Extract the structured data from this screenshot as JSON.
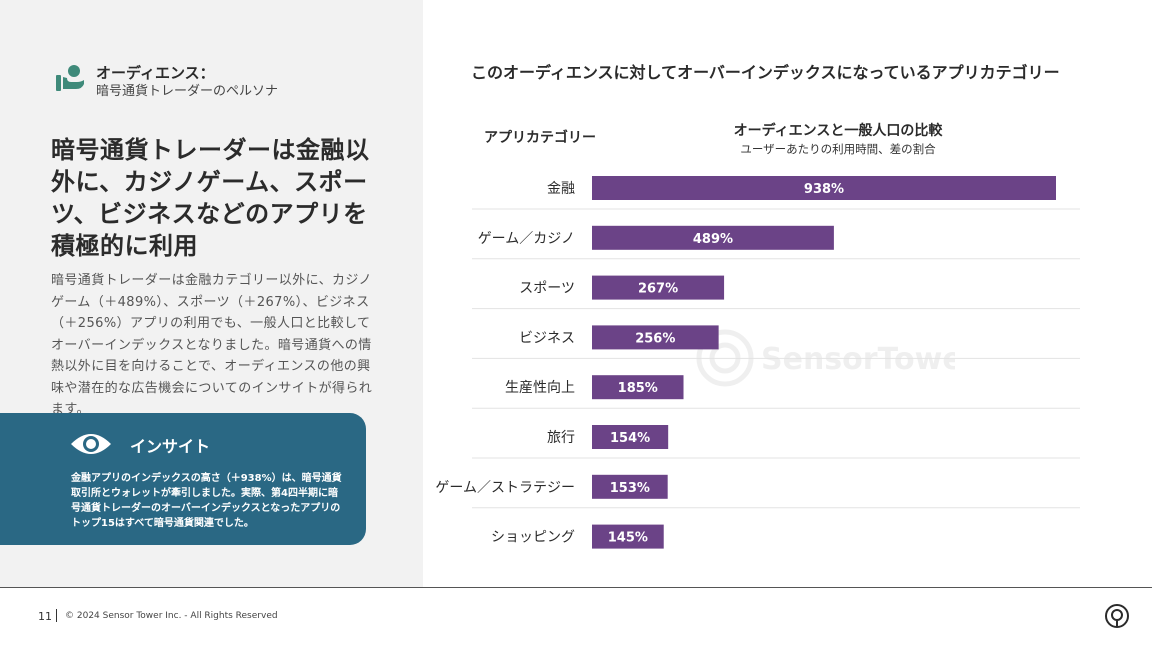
{
  "persona": {
    "title": "オーディエンス：",
    "subtitle": "暗号通貨トレーダーのペルソナ"
  },
  "headline": "暗号通貨トレーダーは金融以外に、カジノゲーム、スポーツ、ビジネスなどのアプリを積極的に利用",
  "body": "暗号通貨トレーダーは金融カテゴリー以外に、カジノゲーム（＋489%）、スポーツ（＋267%）、ビジネス（＋256%）アプリの利用でも、一般人口と比較してオーバーインデックスとなりました。暗号通貨への情熱以外に目を向けることで、オーディエンスの他の興味や潜在的な広告機会についてのインサイトが得られます。",
  "insight": {
    "title": "インサイト",
    "text": "金融アプリのインデックスの高さ（＋938%）は、暗号通貨取引所とウォレットが牽引しました。実際、第4四半期に暗号通貨トレーダーのオーバーインデックスとなったアプリのトップ15はすべて暗号通貨関連でした。"
  },
  "colors": {
    "bar": "#6b4387",
    "insight_bg": "#2a6884",
    "persona_icon": "#3f8a7a",
    "panel_bg": "#f2f2f2"
  },
  "chart_data": {
    "type": "bar",
    "orientation": "horizontal",
    "title": "このオーディエンスに対してオーバーインデックスになっているアプリカテゴリー",
    "category_header": "アプリカテゴリー",
    "value_header": "オーディエンスと一般人口の比較",
    "value_subheader": "ユーザーあたりの利用時間、差の割合",
    "categories": [
      "金融",
      "ゲーム／カジノ",
      "スポーツ",
      "ビジネス",
      "生産性向上",
      "旅行",
      "ゲーム／ストラテジー",
      "ショッピング"
    ],
    "values": [
      938,
      489,
      267,
      256,
      185,
      154,
      153,
      145
    ],
    "labels": [
      "938%",
      "489%",
      "267%",
      "256%",
      "185%",
      "154%",
      "153%",
      "145%"
    ],
    "xlim": [
      0,
      938
    ],
    "unit": "%"
  },
  "watermark": "SensorTower",
  "footer": {
    "page": "11",
    "copyright": "© 2024 Sensor Tower Inc. - All Rights Reserved"
  }
}
